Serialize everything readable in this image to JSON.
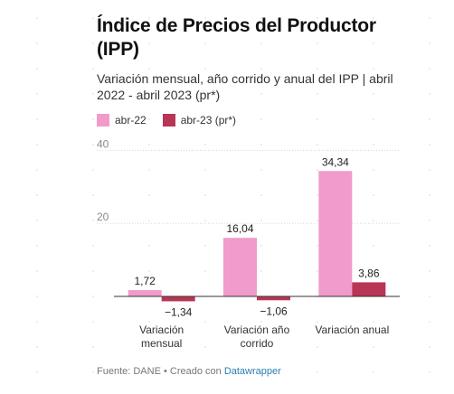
{
  "title": "Índice de Precios del Productor (IPP)",
  "subtitle": "Variación mensual, año corrido y anual del IPP | abril 2022 - abril 2023 (pr*)",
  "legend": [
    {
      "label": "abr-22",
      "color": "#f09bcb"
    },
    {
      "label": "abr-23 (pr*)",
      "color": "#b83555"
    }
  ],
  "chart_data": {
    "type": "bar",
    "categories": [
      "Variación mensual",
      "Variación año corrido",
      "Variación anual"
    ],
    "series": [
      {
        "name": "abr-22",
        "values": [
          1.72,
          16.04,
          34.34
        ],
        "labels": [
          "1,72",
          "16,04",
          "34,34"
        ],
        "color": "#f09bcb"
      },
      {
        "name": "abr-23 (pr*)",
        "values": [
          -1.34,
          -1.06,
          3.86
        ],
        "labels": [
          "−1,34",
          "−1,06",
          "3,86"
        ],
        "color": "#b83555"
      }
    ],
    "y_ticks": [
      20,
      40
    ],
    "ylim": [
      -2,
      40
    ],
    "grid": true,
    "legend_position": "top-left"
  },
  "footer": {
    "source_text": "Fuente: DANE • Creado con ",
    "link_text": "Datawrapper"
  }
}
